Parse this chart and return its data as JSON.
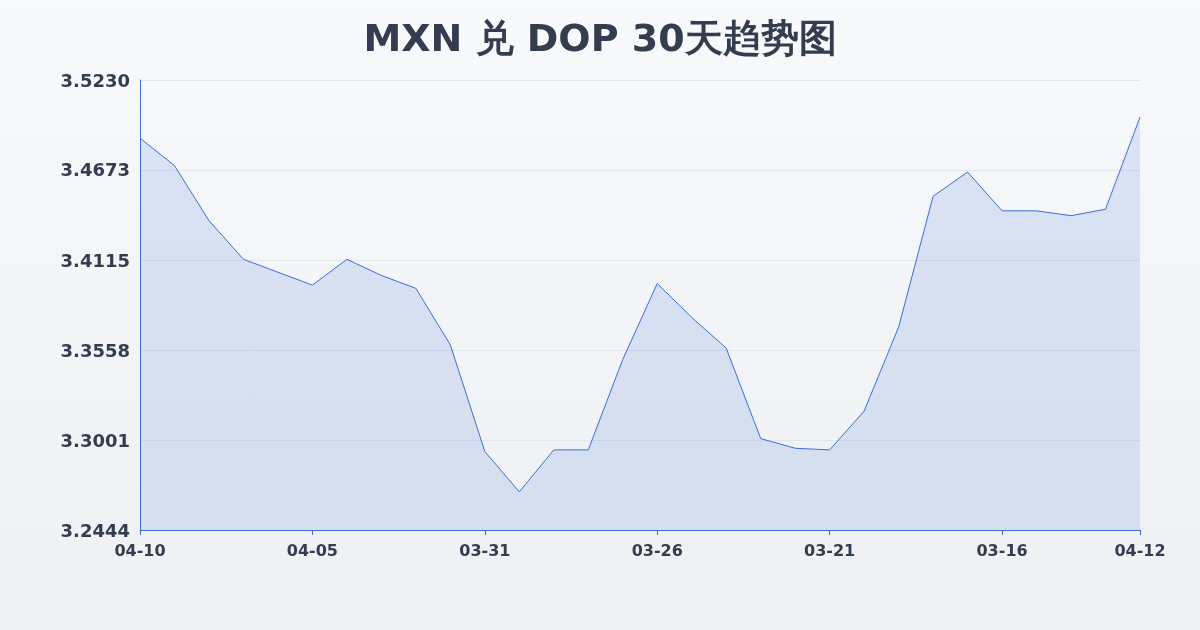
{
  "chart_data": {
    "type": "area",
    "title": "MXN 兑 DOP 30天趋势图",
    "categories": [
      "04-10",
      null,
      null,
      null,
      null,
      "04-05",
      null,
      null,
      null,
      null,
      "03-31",
      null,
      null,
      null,
      null,
      "03-26",
      null,
      null,
      null,
      null,
      "03-21",
      null,
      null,
      null,
      null,
      "03-16",
      null,
      null,
      null,
      "04-12"
    ],
    "series": [
      {
        "color": "#3a6fd8",
        "values": [
          3.487,
          3.47,
          3.436,
          3.412,
          3.404,
          3.396,
          3.412,
          3.402,
          3.394,
          3.359,
          3.293,
          3.268,
          3.294,
          3.294,
          3.35,
          3.397,
          3.376,
          3.357,
          3.301,
          3.295,
          3.294,
          3.318,
          3.37,
          3.451,
          3.466,
          3.442,
          3.442,
          3.439,
          3.443,
          3.5
        ]
      }
    ],
    "ylim": [
      3.2444,
      3.523
    ],
    "yticks": [
      3.2444,
      3.3001,
      3.3558,
      3.4115,
      3.4673,
      {
        "value": 3.523,
        "label": "3.5230"
      }
    ],
    "grid": "y",
    "marker": "none",
    "line_style": "solid"
  }
}
